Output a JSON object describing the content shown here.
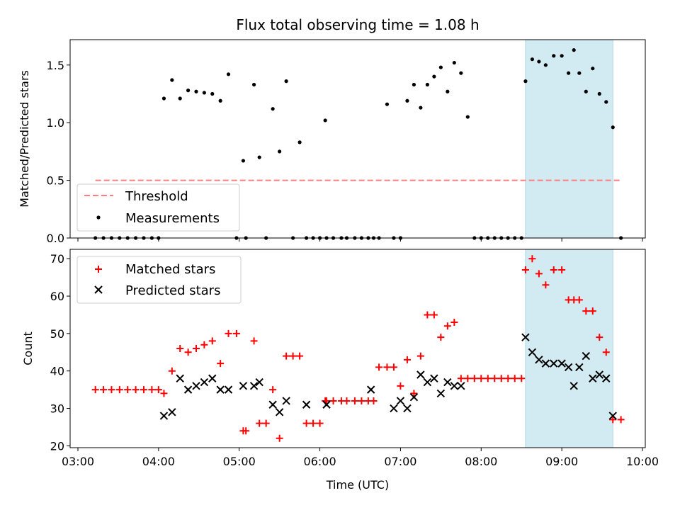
{
  "figure": {
    "title": "Flux total observing time = 1.08 h"
  },
  "colors": {
    "threshold": "#ff7f7f",
    "matched": "#ff0000",
    "predicted": "#000000",
    "measurement": "#000000",
    "shaded_span": "#add8e6"
  },
  "chart_data": [
    {
      "type": "scatter",
      "title": "Flux total observing time = 1.08 h",
      "xlabel": "",
      "ylabel": "Matched/Predicted stars",
      "xlim": [
        "03:00",
        "10:00"
      ],
      "ylim": [
        0,
        1.72
      ],
      "yticks": [
        0.0,
        0.5,
        1.0,
        1.5
      ],
      "ytick_labels": [
        "0.0",
        "0.5",
        "1.0",
        "1.5"
      ],
      "shaded_span": [
        "08:33",
        "09:38"
      ],
      "legend": {
        "placement": "lower-left",
        "entries": [
          "Threshold",
          "Measurements"
        ]
      },
      "threshold": {
        "name": "Threshold",
        "value": 0.5,
        "x_range": [
          "03:13",
          "09:44"
        ],
        "style": "dashed"
      },
      "series": [
        {
          "name": "Measurements",
          "x": [
            "03:13",
            "03:19",
            "03:25",
            "03:31",
            "03:37",
            "03:43",
            "03:49",
            "03:55",
            "04:00",
            "04:04",
            "04:10",
            "04:16",
            "04:22",
            "04:28",
            "04:34",
            "04:40",
            "04:46",
            "04:52",
            "04:58",
            "05:03",
            "05:05",
            "05:11",
            "05:15",
            "05:20",
            "05:25",
            "05:30",
            "05:35",
            "05:40",
            "05:45",
            "05:50",
            "05:55",
            "06:00",
            "06:04",
            "06:05",
            "06:10",
            "06:16",
            "06:20",
            "06:26",
            "06:31",
            "06:36",
            "06:40",
            "06:44",
            "06:50",
            "06:55",
            "07:00",
            "07:05",
            "07:10",
            "07:15",
            "07:20",
            "07:25",
            "07:30",
            "07:35",
            "07:40",
            "07:45",
            "07:50",
            "07:55",
            "08:00",
            "08:05",
            "08:10",
            "08:15",
            "08:20",
            "08:25",
            "08:30",
            "08:33",
            "08:38",
            "08:43",
            "08:48",
            "08:54",
            "09:00",
            "09:05",
            "09:09",
            "09:13",
            "09:18",
            "09:23",
            "09:28",
            "09:33",
            "09:38",
            "09:44"
          ],
          "y": [
            0,
            0,
            0,
            0,
            0,
            0,
            0,
            0,
            0,
            1.21,
            1.37,
            1.21,
            1.28,
            1.27,
            1.26,
            1.25,
            1.19,
            1.42,
            0,
            0.67,
            0,
            1.33,
            0.7,
            0,
            1.12,
            0.75,
            1.36,
            0,
            0.83,
            0,
            0,
            0,
            1.02,
            0,
            0,
            0,
            0,
            0,
            0,
            0,
            0,
            0,
            1.16,
            0,
            0,
            1.19,
            1.33,
            1.13,
            1.33,
            1.4,
            1.48,
            1.27,
            1.52,
            1.43,
            1.05,
            0,
            0,
            0,
            0,
            0,
            0,
            0,
            0,
            1.36,
            1.55,
            1.53,
            1.5,
            1.58,
            1.58,
            1.43,
            1.63,
            1.43,
            1.27,
            1.47,
            1.25,
            1.18,
            0.96,
            0
          ]
        }
      ]
    },
    {
      "type": "scatter",
      "title": "",
      "xlabel": "Time (UTC)",
      "ylabel": "Count",
      "xlim": [
        "03:00",
        "10:00"
      ],
      "xticks": [
        "03:00",
        "04:00",
        "05:00",
        "06:00",
        "07:00",
        "08:00",
        "09:00",
        "10:00"
      ],
      "ylim": [
        19.5,
        72.5
      ],
      "yticks": [
        20,
        30,
        40,
        50,
        60,
        70
      ],
      "shaded_span": [
        "08:33",
        "09:38"
      ],
      "legend": {
        "placement": "top-left",
        "entries": [
          "Matched stars",
          "Predicted stars"
        ]
      },
      "series": [
        {
          "name": "Matched stars",
          "x": [
            "03:13",
            "03:19",
            "03:25",
            "03:31",
            "03:37",
            "03:43",
            "03:49",
            "03:55",
            "04:00",
            "04:04",
            "04:10",
            "04:16",
            "04:22",
            "04:28",
            "04:34",
            "04:40",
            "04:46",
            "04:52",
            "04:58",
            "05:03",
            "05:05",
            "05:11",
            "05:15",
            "05:20",
            "05:25",
            "05:30",
            "05:35",
            "05:40",
            "05:45",
            "05:50",
            "05:55",
            "06:00",
            "06:04",
            "06:05",
            "06:10",
            "06:16",
            "06:20",
            "06:26",
            "06:31",
            "06:36",
            "06:40",
            "06:44",
            "06:50",
            "06:55",
            "07:00",
            "07:05",
            "07:10",
            "07:15",
            "07:20",
            "07:25",
            "07:30",
            "07:35",
            "07:40",
            "07:45",
            "07:50",
            "07:55",
            "08:00",
            "08:05",
            "08:10",
            "08:15",
            "08:20",
            "08:25",
            "08:30",
            "08:33",
            "08:38",
            "08:43",
            "08:48",
            "08:54",
            "09:00",
            "09:05",
            "09:09",
            "09:13",
            "09:18",
            "09:23",
            "09:28",
            "09:33",
            "09:38",
            "09:44"
          ],
          "y": [
            35,
            35,
            35,
            35,
            35,
            35,
            35,
            35,
            35,
            34,
            40,
            46,
            45,
            46,
            47,
            48,
            42,
            50,
            50,
            24,
            24,
            48,
            26,
            26,
            35,
            22,
            44,
            44,
            44,
            26,
            26,
            26,
            32,
            32,
            32,
            32,
            32,
            32,
            32,
            32,
            32,
            41,
            41,
            41,
            36,
            43,
            34,
            44,
            55,
            55,
            49,
            52,
            53,
            38,
            38,
            38,
            38,
            38,
            38,
            38,
            38,
            38,
            38,
            67,
            70,
            66,
            63,
            67,
            67,
            59,
            59,
            59,
            56,
            56,
            49,
            45,
            27,
            27
          ]
        },
        {
          "name": "Predicted stars",
          "x": [
            "04:04",
            "04:10",
            "04:16",
            "04:22",
            "04:28",
            "04:34",
            "04:40",
            "04:46",
            "04:52",
            "05:03",
            "05:11",
            "05:15",
            "05:25",
            "05:30",
            "05:35",
            "05:50",
            "06:05",
            "06:38",
            "06:55",
            "07:00",
            "07:05",
            "07:10",
            "07:15",
            "07:20",
            "07:25",
            "07:30",
            "07:35",
            "07:40",
            "07:45",
            "08:33",
            "08:38",
            "08:43",
            "08:48",
            "08:54",
            "09:00",
            "09:05",
            "09:09",
            "09:13",
            "09:18",
            "09:23",
            "09:28",
            "09:33",
            "09:38"
          ],
          "y": [
            28,
            29,
            38,
            35,
            36,
            37,
            38,
            35,
            35,
            36,
            36,
            37,
            31,
            29,
            32,
            31,
            31,
            35,
            30,
            32,
            30,
            33,
            39,
            37,
            38,
            34,
            37,
            36,
            36,
            49,
            45,
            43,
            42,
            42,
            42,
            41,
            36,
            41,
            44,
            38,
            39,
            38,
            28
          ]
        }
      ]
    }
  ]
}
